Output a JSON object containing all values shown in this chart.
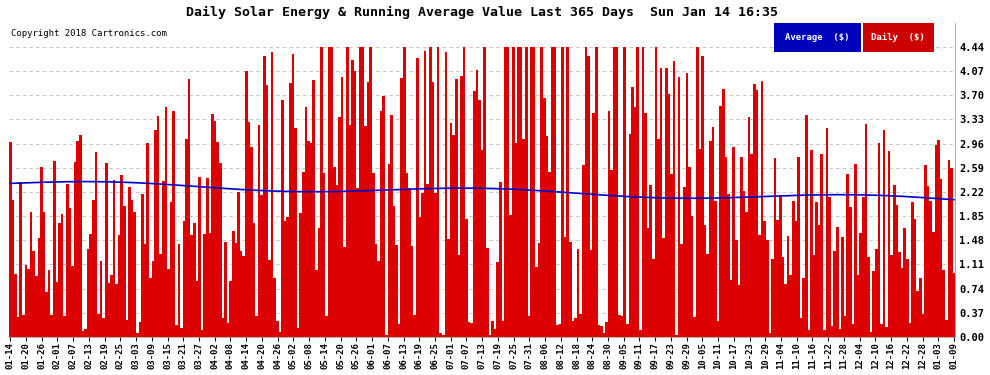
{
  "title": "Daily Solar Energy & Running Average Value Last 365 Days  Sun Jan 14 16:35",
  "copyright": "Copyright 2018 Cartronics.com",
  "background_color": "#ffffff",
  "plot_bg_color": "#ffffff",
  "bar_color": "#dd0000",
  "line_color": "#0000cc",
  "grid_color": "#bbbbbb",
  "ylim_min": 0.0,
  "ylim_max": 4.81,
  "yticks": [
    0.0,
    0.37,
    0.74,
    1.11,
    1.48,
    1.85,
    2.22,
    2.59,
    2.96,
    3.33,
    3.7,
    4.07,
    4.44
  ],
  "legend_avg_bg": "#0000bb",
  "legend_daily_bg": "#cc0000",
  "legend_text_color": "#ffffff",
  "num_days": 365,
  "seed": 42,
  "x_tick_labels": [
    "01-14",
    "01-20",
    "01-26",
    "02-01",
    "02-07",
    "02-13",
    "02-19",
    "02-25",
    "03-03",
    "03-09",
    "03-15",
    "03-21",
    "03-27",
    "04-02",
    "04-08",
    "04-14",
    "04-20",
    "04-26",
    "05-02",
    "05-08",
    "05-14",
    "05-20",
    "05-26",
    "06-01",
    "06-07",
    "06-13",
    "06-19",
    "06-25",
    "07-01",
    "07-07",
    "07-13",
    "07-19",
    "07-25",
    "07-31",
    "08-06",
    "08-12",
    "08-18",
    "08-24",
    "08-30",
    "09-05",
    "09-11",
    "09-17",
    "09-23",
    "09-29",
    "10-05",
    "10-11",
    "10-17",
    "10-23",
    "10-29",
    "11-04",
    "11-10",
    "11-16",
    "11-22",
    "11-28",
    "12-04",
    "12-10",
    "12-16",
    "12-22",
    "12-28",
    "01-03",
    "01-09"
  ]
}
